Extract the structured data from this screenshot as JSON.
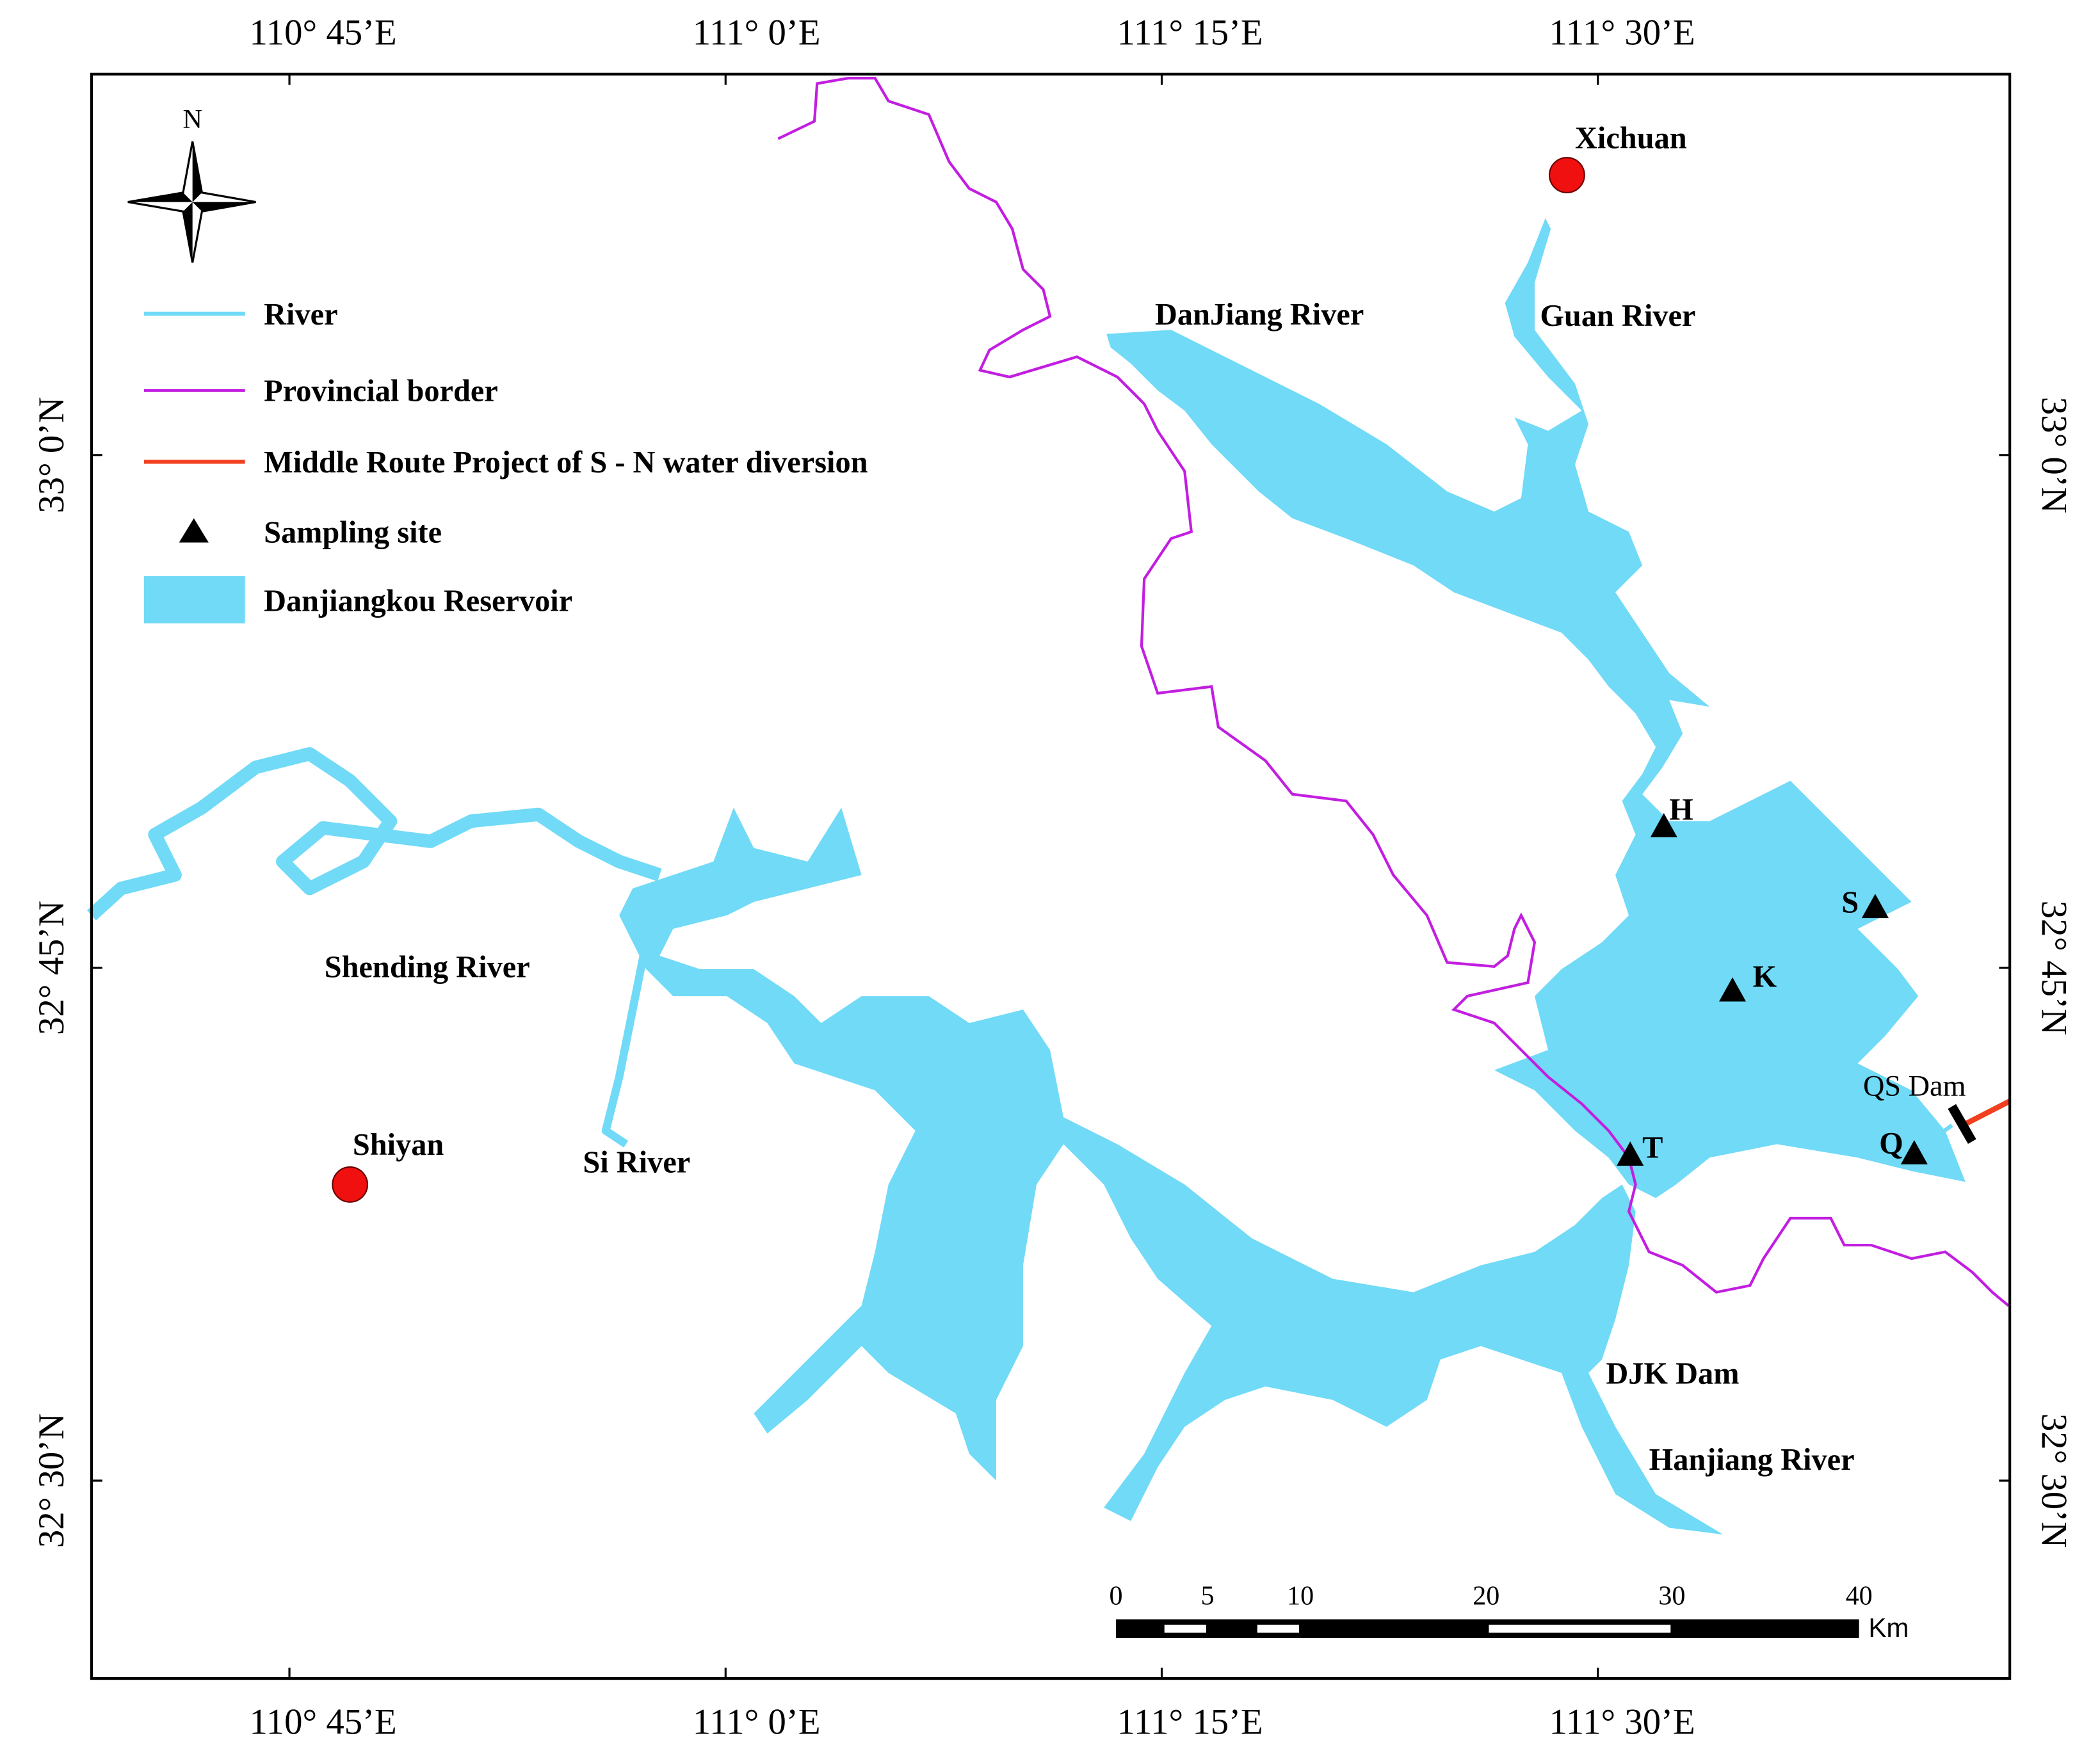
{
  "axes": {
    "top_lon": [
      "110° 45’E",
      "111° 0’E",
      "111° 15’E",
      "111° 30’E"
    ],
    "bottom_lon": [
      "110° 45’E",
      "111° 0’E",
      "111° 15’E",
      "111° 30’E"
    ],
    "left_lat": [
      "33° 0’N",
      "32° 45’N",
      "32° 30’N"
    ],
    "right_lat": [
      "33° 0’N",
      "32° 45’N",
      "32° 30’N"
    ]
  },
  "compass": "N",
  "legend": [
    "River",
    "Provincial border",
    "Middle Route Project of S - N water diversion",
    "Sampling site",
    "Danjiangkou Reservoir"
  ],
  "places": [
    "Xichuan",
    "Shiyan"
  ],
  "rivers": [
    "DanJiang River",
    "Guan River",
    "Shending River",
    "Si River",
    "Hanjiang River"
  ],
  "dams": [
    "DJK Dam",
    "QS Dam"
  ],
  "sites": [
    "H",
    "S",
    "K",
    "T",
    "Q"
  ],
  "scale_bar": {
    "ticks": [
      "0",
      "5",
      "10",
      "20",
      "30",
      "40"
    ],
    "unit": "Km"
  }
}
